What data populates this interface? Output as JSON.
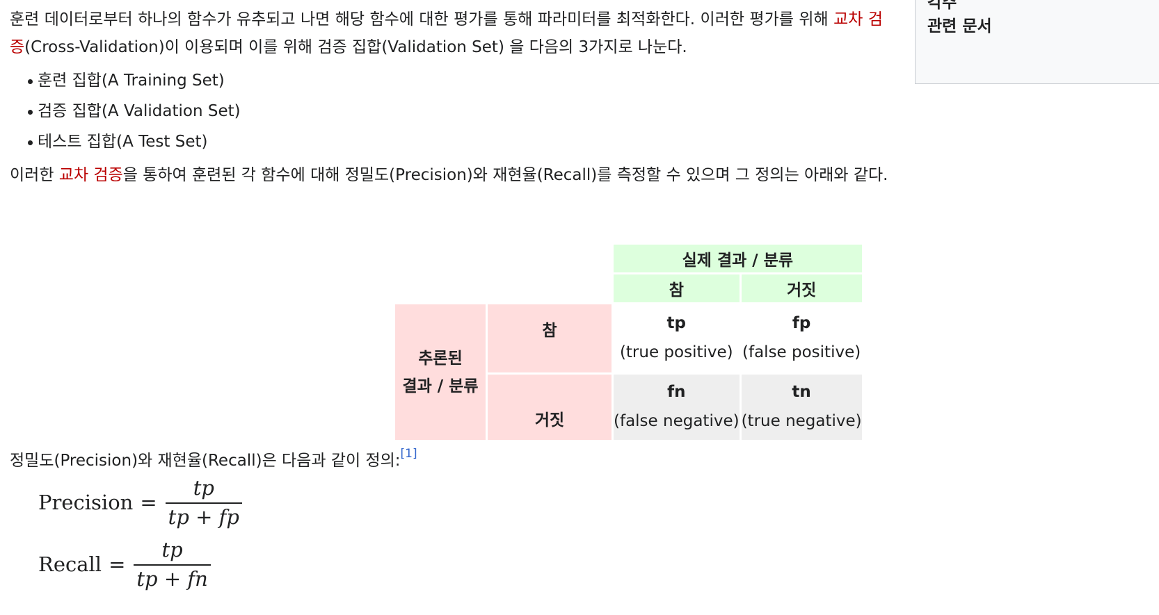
{
  "intro": {
    "text_before_link": "훈련 데이터로부터 하나의 함수가 유추되고 나면 해당 함수에 대한 평가를 통해 파라미터를 최적화한다. 이러한 평가를 위해 ",
    "link": "교차 검증",
    "text_after_link": "(Cross-Validation)이 이용되며 이를 위해 검증 집합(Validation Set) 을 다음의 3가지로 나눈다."
  },
  "sets": [
    "훈련 집합(A Training Set)",
    "검증 집합(A Validation Set)",
    "테스트 집합(A Test Set)"
  ],
  "para2": {
    "before_link": "이러한 ",
    "link": "교차 검증",
    "after_link": "을 통하여 훈련된 각 함수에 대해 정밀도(Precision)와 재현율(Recall)를 측정할 수 있으며 그 정의는 아래와 같다."
  },
  "sidebar": {
    "partial_item": "각주",
    "item": "관련 문서"
  },
  "table": {
    "actual_header": "실제 결과 / 분류",
    "col_true": "참",
    "col_false": "거짓",
    "predicted_header_line1": "추론된",
    "predicted_header_line2": "결과 / 분류",
    "row_true": "참",
    "row_false": "거짓",
    "tp": "tp",
    "tp_desc": "(true positive)",
    "fp": "fp",
    "fp_desc": "(false positive)",
    "fn": "fn",
    "fn_desc": "(false negative)",
    "tn": "tn",
    "tn_desc": "(true negative)"
  },
  "para3": {
    "text": "정밀도(Precision)와 재현율(Recall)은 다음과 같이 정의:",
    "ref": "[1]"
  },
  "formulas": {
    "precision_lhs": "Precision",
    "precision_num": "tp",
    "precision_den": "tp + fp",
    "recall_lhs": "Recall",
    "recall_num": "tp",
    "recall_den": "tp + fn",
    "equals": "="
  }
}
